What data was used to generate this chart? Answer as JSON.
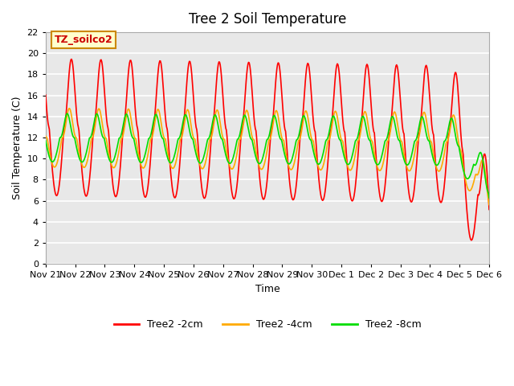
{
  "title": "Tree 2 Soil Temperature",
  "ylabel": "Soil Temperature (C)",
  "xlabel": "Time",
  "annotation": "TZ_soilco2",
  "annotation_bg": "#ffffcc",
  "annotation_border": "#cc8800",
  "ylim": [
    0,
    22
  ],
  "line_colors": {
    "2cm": "#ff0000",
    "4cm": "#ffaa00",
    "8cm": "#00dd00"
  },
  "legend_labels": [
    "Tree2 -2cm",
    "Tree2 -4cm",
    "Tree2 -8cm"
  ],
  "xtick_labels": [
    "Nov 21",
    "Nov 22",
    "Nov 23",
    "Nov 24",
    "Nov 25",
    "Nov 26",
    "Nov 27",
    "Nov 28",
    "Nov 29",
    "Nov 30",
    "Dec 1",
    "Dec 2",
    "Dec 3",
    "Dec 4",
    "Dec 5",
    "Dec 6"
  ],
  "plot_bg": "#e8e8e8",
  "grid_color": "#ffffff",
  "linewidth": 1.2,
  "n_days": 15,
  "pts_per_day": 48
}
